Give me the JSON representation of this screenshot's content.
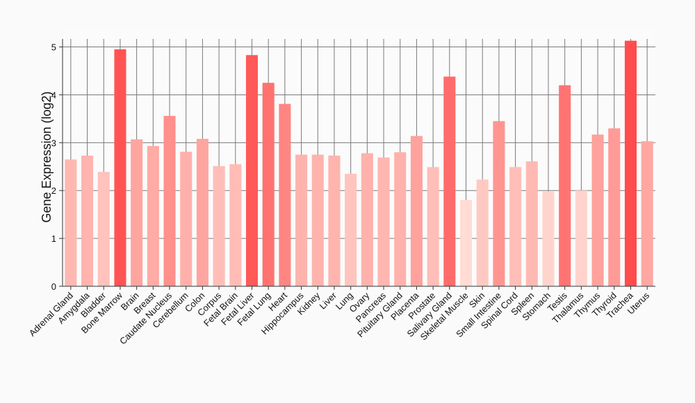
{
  "chart_data": {
    "type": "bar",
    "ylabel": "Gene Expression (log2)",
    "xlabel": "",
    "ylim": [
      0,
      5.4
    ],
    "yticks": [
      0,
      1,
      2,
      3,
      4,
      5
    ],
    "grid": true,
    "color_low": "#ffdcd4",
    "color_high": "#ff4c4c",
    "categories": [
      "Adrenal Gland",
      "Amygdala",
      "Bladder",
      "Bone Marrow",
      "Brain",
      "Breast",
      "Caudate Nucleus",
      "Cerebellum",
      "Colon",
      "Corpus",
      "Fetal Brain",
      "Fetal Liver",
      "Fetal Lung",
      "Heart",
      "Hippocampus",
      "Kidney",
      "Liver",
      "Lung",
      "Ovary",
      "Pancreas",
      "Pituitary Gland",
      "Placenta",
      "Prostate",
      "Salivary Gland",
      "Skeletal Muscle",
      "Skin",
      "Small Intestine",
      "Spinal Cord",
      "Spleen",
      "Stomach",
      "Testis",
      "Thalamus",
      "Thymus",
      "Thyroid",
      "Trachea",
      "Uterus"
    ],
    "values": [
      2.65,
      2.73,
      2.39,
      4.95,
      3.07,
      2.93,
      3.56,
      2.81,
      3.08,
      2.51,
      2.55,
      4.83,
      4.25,
      3.81,
      2.75,
      2.75,
      2.73,
      2.35,
      2.78,
      2.69,
      2.8,
      3.14,
      2.49,
      4.38,
      1.8,
      2.23,
      3.45,
      2.49,
      2.61,
      1.98,
      4.2,
      2.0,
      3.17,
      3.3,
      5.13,
      3.03
    ]
  }
}
